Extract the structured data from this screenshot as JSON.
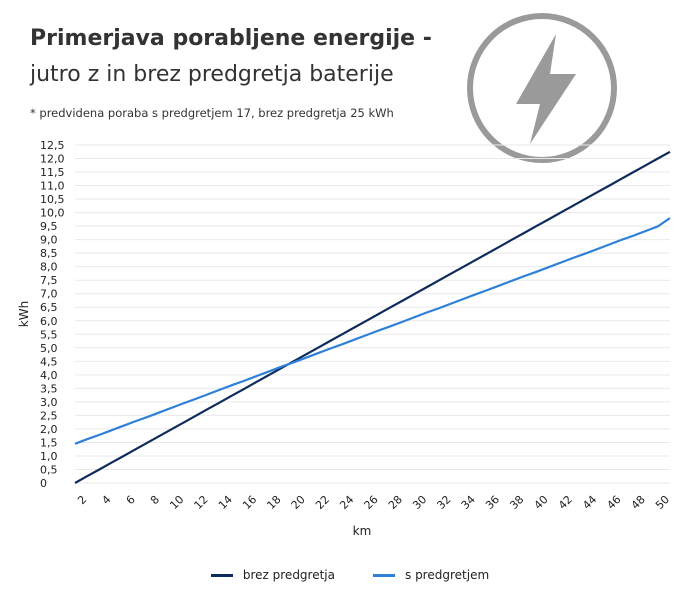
{
  "header": {
    "title_line1": "Primerjava porabljene energije -",
    "title_line2": "jutro z in brez predgretja baterije",
    "note": "* predvidena poraba s predgretjem 17, brez predgretja 25 kWh",
    "logo_icon": "lightning-bolt-icon"
  },
  "colors": {
    "series_brez": "#0d2b5c",
    "series_s": "#2f80d8",
    "grid": "#e9e9e9",
    "logo": "#9a9a9a"
  },
  "chart_data": {
    "type": "line",
    "xlabel": "km",
    "ylabel": "kWh",
    "xlim": [
      1,
      50
    ],
    "ylim": [
      0,
      12.5
    ],
    "x_ticks": [
      2,
      4,
      6,
      8,
      10,
      12,
      14,
      16,
      18,
      20,
      22,
      24,
      26,
      28,
      30,
      32,
      34,
      36,
      38,
      40,
      42,
      44,
      46,
      48,
      50
    ],
    "y_ticks": [
      "0",
      "0,5",
      "1,0",
      "1,5",
      "2,0",
      "2,5",
      "3,0",
      "3,5",
      "4,0",
      "4,5",
      "5,0",
      "5,5",
      "6,0",
      "6,5",
      "7,0",
      "7,5",
      "8,0",
      "8,5",
      "9,0",
      "9,5",
      "10,0",
      "10,5",
      "11,0",
      "11,5",
      "12,0",
      "12,5"
    ],
    "y_tick_values": [
      0,
      0.5,
      1,
      1.5,
      2,
      2.5,
      3,
      3.5,
      4,
      4.5,
      5,
      5.5,
      6,
      6.5,
      7,
      7.5,
      8,
      8.5,
      9,
      9.5,
      10,
      10.5,
      11,
      11.5,
      12,
      12.5
    ],
    "grid": true,
    "legend_position": "bottom",
    "series": [
      {
        "name": "brez predgretja",
        "x": [
          1,
          2,
          3,
          4,
          5,
          6,
          7,
          8,
          9,
          10,
          11,
          12,
          13,
          14,
          15,
          16,
          17,
          18,
          19,
          20,
          21,
          22,
          23,
          24,
          25,
          26,
          27,
          28,
          29,
          30,
          31,
          32,
          33,
          34,
          35,
          36,
          37,
          38,
          39,
          40,
          41,
          42,
          43,
          44,
          45,
          46,
          47,
          48,
          49,
          50
        ],
        "values": [
          0.0,
          0.25,
          0.5,
          0.75,
          1.0,
          1.25,
          1.5,
          1.75,
          2.0,
          2.25,
          2.5,
          2.75,
          3.0,
          3.25,
          3.5,
          3.75,
          4.0,
          4.25,
          4.5,
          4.75,
          5.0,
          5.25,
          5.5,
          5.75,
          6.0,
          6.25,
          6.5,
          6.75,
          7.0,
          7.25,
          7.5,
          7.75,
          8.0,
          8.25,
          8.5,
          8.75,
          9.0,
          9.25,
          9.5,
          9.75,
          10.0,
          10.25,
          10.5,
          10.75,
          11.0,
          11.25,
          11.5,
          11.75,
          12.0,
          12.25
        ]
      },
      {
        "name": "s predgretjem",
        "x": [
          1,
          2,
          3,
          4,
          5,
          6,
          7,
          8,
          9,
          10,
          11,
          12,
          13,
          14,
          15,
          16,
          17,
          18,
          19,
          20,
          21,
          22,
          23,
          24,
          25,
          26,
          27,
          28,
          29,
          30,
          31,
          32,
          33,
          34,
          35,
          36,
          37,
          38,
          39,
          40,
          41,
          42,
          43,
          44,
          45,
          46,
          47,
          48,
          49,
          50
        ],
        "values": [
          1.45,
          1.62,
          1.78,
          1.95,
          2.12,
          2.29,
          2.45,
          2.62,
          2.79,
          2.96,
          3.12,
          3.29,
          3.46,
          3.63,
          3.79,
          3.96,
          4.13,
          4.3,
          4.46,
          4.63,
          4.8,
          4.97,
          5.13,
          5.3,
          5.47,
          5.64,
          5.8,
          5.97,
          6.14,
          6.31,
          6.47,
          6.64,
          6.81,
          6.98,
          7.14,
          7.31,
          7.48,
          7.65,
          7.81,
          7.98,
          8.15,
          8.32,
          8.48,
          8.65,
          8.82,
          8.99,
          9.15,
          9.32,
          9.49,
          9.8
        ]
      }
    ]
  }
}
